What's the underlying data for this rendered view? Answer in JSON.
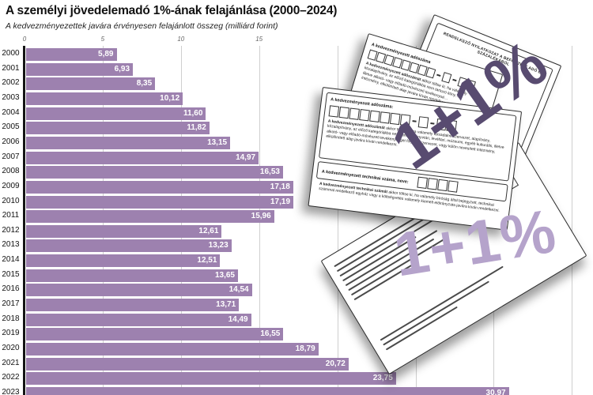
{
  "header": {
    "title": "A személyi jövedelemadó 1%-ának felajánlása (2000–2024)",
    "subtitle": "A kedvezményezettek javára érvényesen felajánlott összeg (milliárd forint)"
  },
  "chart_data": {
    "type": "bar",
    "orientation": "horizontal",
    "title": "A személyi jövedelemadó 1%-ának felajánlása (2000–2024)",
    "subtitle": "A kedvezményezettek javára érvényesen felajánlott összeg (milliárd forint)",
    "unit": "milliárd forint",
    "categories": [
      "2000",
      "2001",
      "2002",
      "2003",
      "2004",
      "2005",
      "2006",
      "2007",
      "2008",
      "2009",
      "2010",
      "2011",
      "2012",
      "2013",
      "2014",
      "2015",
      "2016",
      "2017",
      "2018",
      "2019",
      "2020",
      "2021",
      "2022",
      "2023"
    ],
    "values": [
      5.89,
      6.93,
      8.35,
      10.12,
      11.6,
      11.82,
      13.15,
      14.97,
      16.53,
      17.18,
      17.19,
      15.96,
      12.61,
      13.23,
      12.51,
      13.65,
      14.54,
      13.71,
      14.49,
      16.55,
      18.79,
      20.72,
      23.75,
      30.97
    ],
    "value_labels": [
      "5,89",
      "6,93",
      "8,35",
      "10,12",
      "11,60",
      "11,82",
      "13,15",
      "14,97",
      "16,53",
      "17,18",
      "17,19",
      "15,96",
      "12,61",
      "13,23",
      "12,51",
      "13,65",
      "14,54",
      "13,71",
      "14,49",
      "16,55",
      "18,79",
      "20,72",
      "23,75",
      "30,97"
    ],
    "xlim": [
      0,
      35
    ],
    "ticks": [
      {
        "value": 0,
        "label": "0"
      },
      {
        "value": 5,
        "label": "5"
      },
      {
        "value": 10,
        "label": "10"
      },
      {
        "value": 15,
        "label": "15"
      }
    ],
    "gridline_values": [
      5,
      10,
      15,
      20,
      25,
      30,
      35
    ],
    "grid": true,
    "legend": "none",
    "bar_color": "#9d81af",
    "value_label_color": "#ffffff"
  },
  "documents": {
    "watermark_dark": "1+1%",
    "watermark_light": "1+1%",
    "form_right": {
      "header": "RENDELKEZŐ NYILATKOZAT A BEFIZETETT ADÓ EGY SZÁZALÉKÁRÓL",
      "fragment1": "bejelentkezett",
      "fragment2": "nyilatkozatot"
    },
    "form_back": {
      "tax_number_label": "A kedvezményezett adószáma",
      "paragraph_bold": "A kedvezményezett adószámát",
      "paragraph_rest": "akkor töltse ki, ha valamely",
      "line1": "közalapítvány, az előző kategóriákba nem tartozó köny…",
      "line2": "illetve alkotó- vagy előadó-művészeti tevékenysé…",
      "line3": "intézmény, elkülönített alap javára kíván rendelkezni."
    },
    "form_front": {
      "tax_number_label": "A kedvezményezett adószáma:",
      "tax_paragraph_bold": "A kedvezményezett adószámát",
      "tax_paragraph": "akkor töltse ki, ha valamely társadalmi szervezet, alapítvány, közalapítvány, az előző kategóriákba nem tartozó könyvtári, levéltári, múzeumi, egyéb kulturális, illetve alkotó- vagy előadó-művészeti tevékenységet folytató szervezet, vagy külön nevesített intézmény, elkülönített alap javára kíván rendelkezni.",
      "technical_label": "A kedvezményezett technikai száma, neve:",
      "technical_paragraph_bold": "A kedvezményezett technikai számát",
      "technical_paragraph": "akkor töltse ki, ha valamely bíróság által bejegyzett, technikai számmal rendelkező egyház vagy a költségvetés valamely kiemelt előirányzata javára kíván rendelkezni."
    }
  }
}
